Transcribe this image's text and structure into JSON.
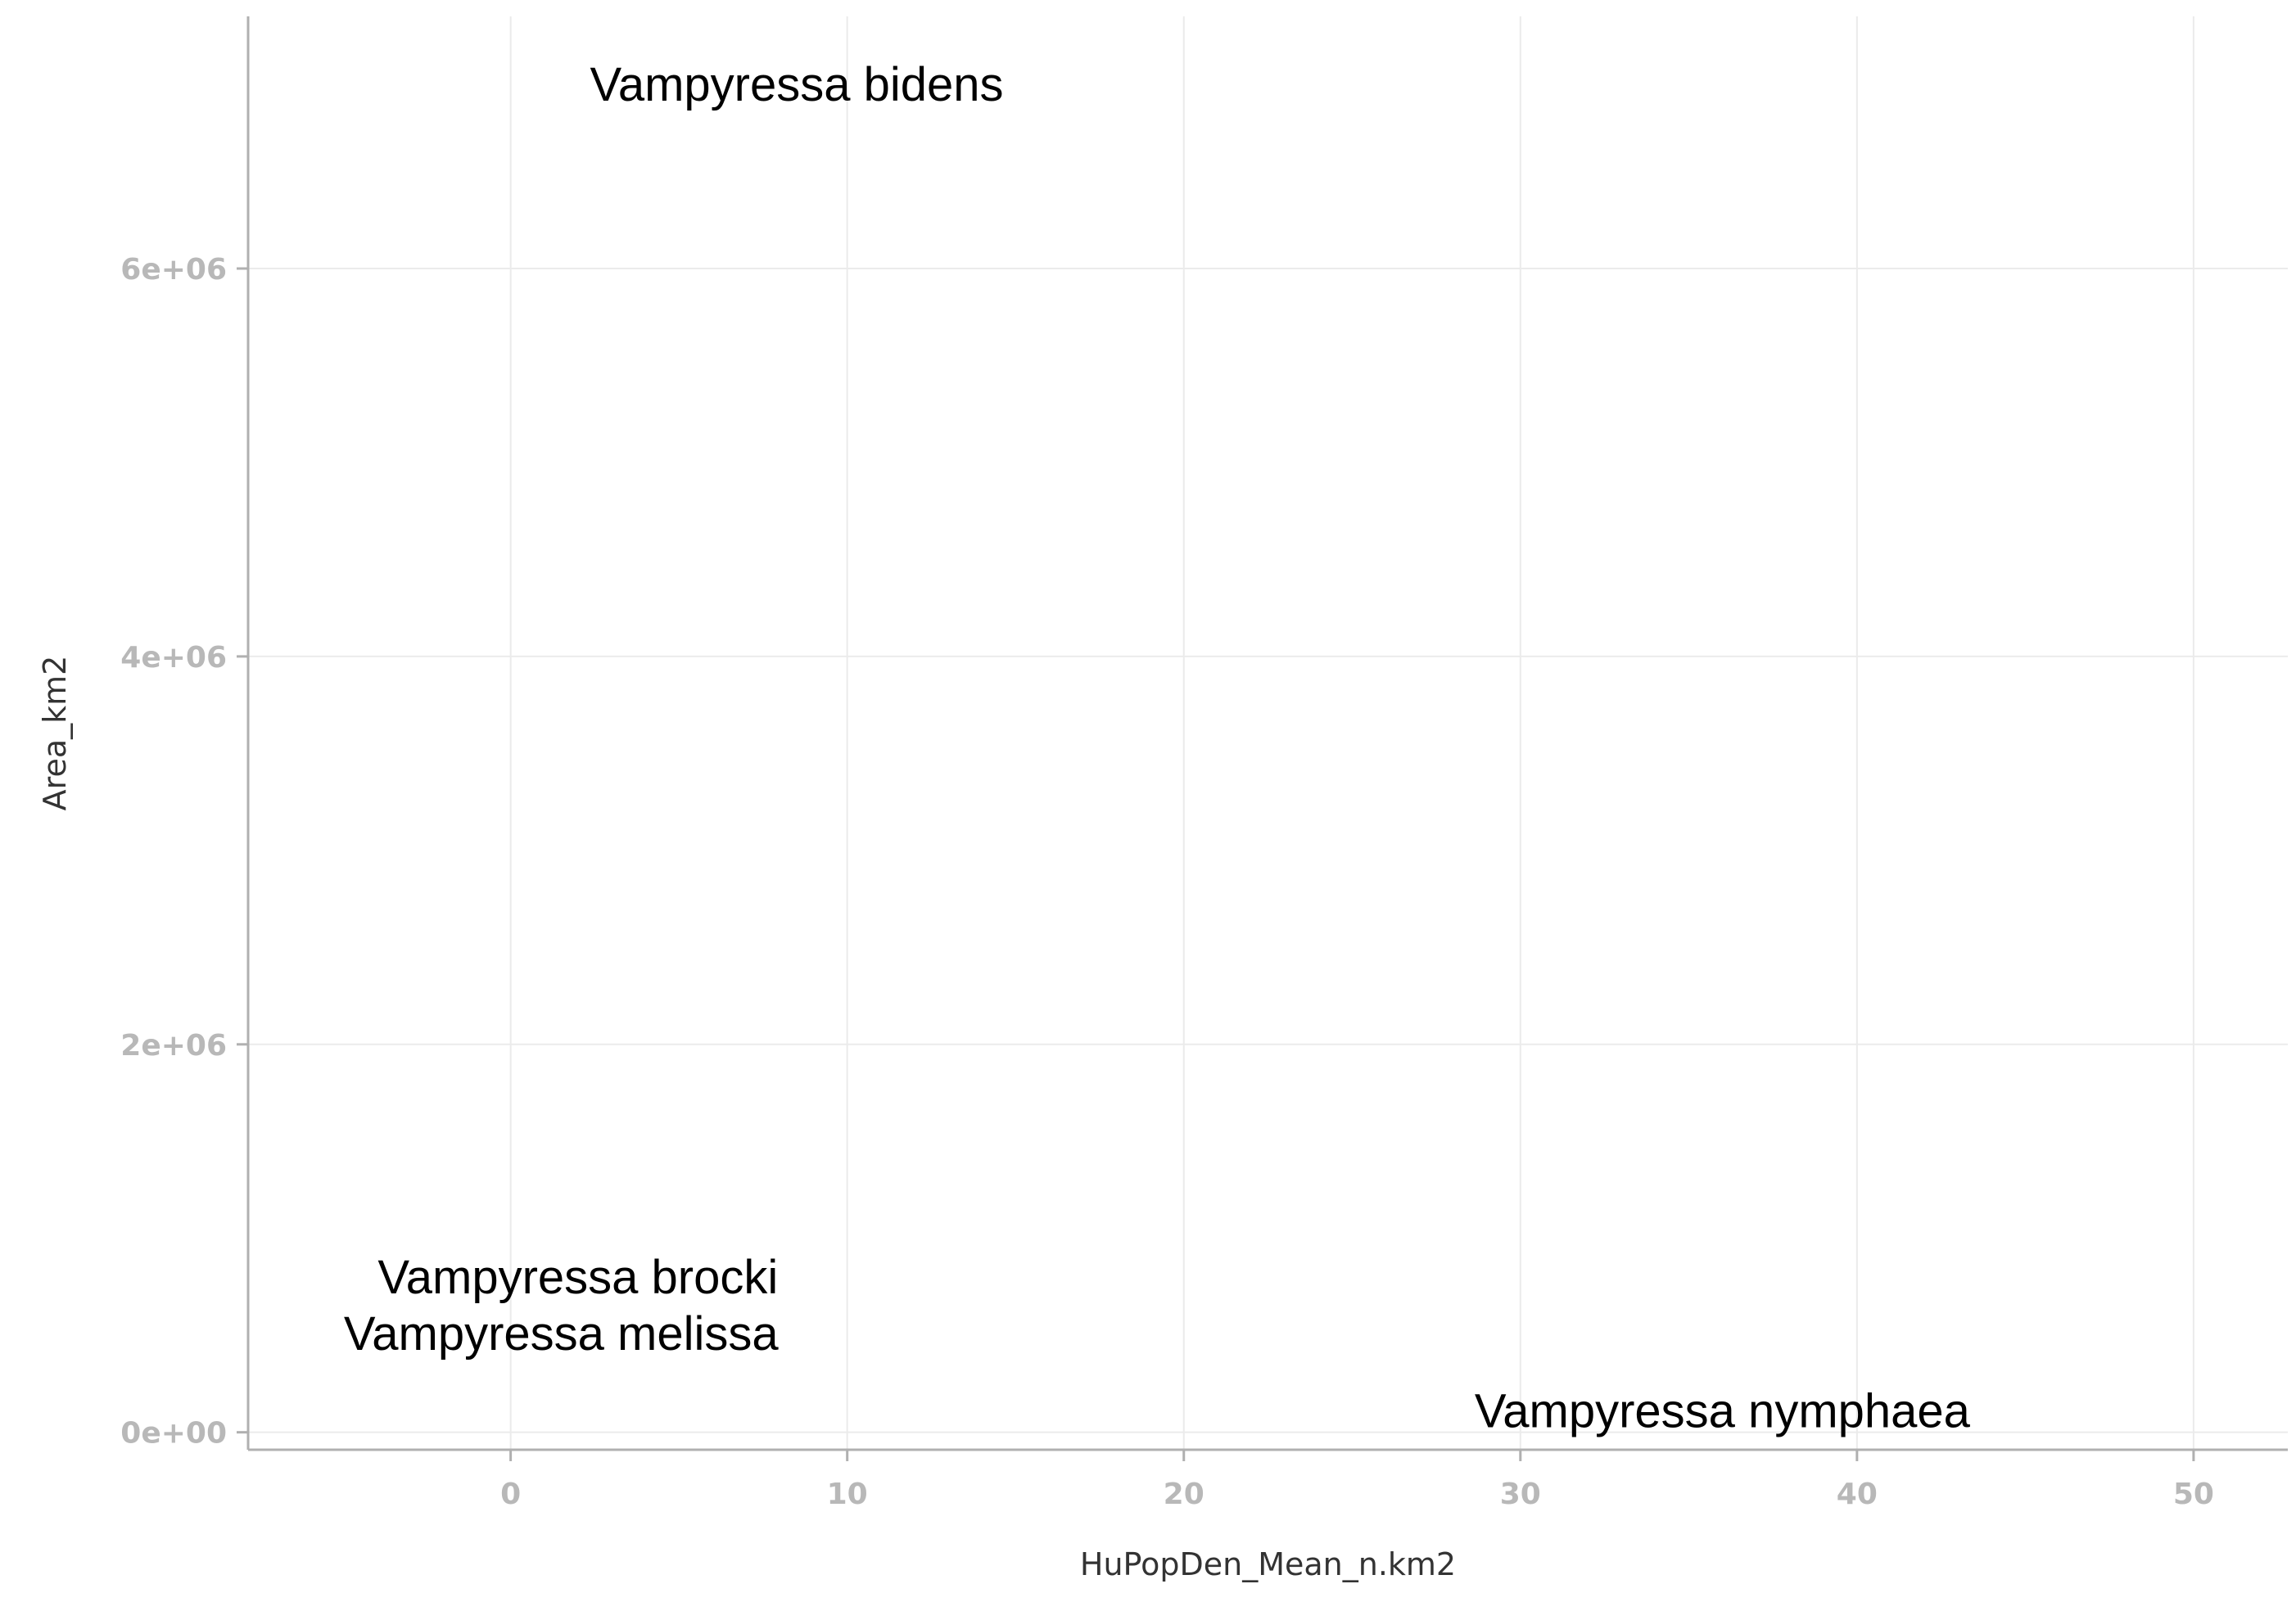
{
  "chart_data": {
    "type": "scatter",
    "xlabel": "HuPopDen_Mean_n.km2",
    "ylabel": "Area_km2",
    "xlim": [
      -7.8,
      52.8
    ],
    "ylim": [
      -90000,
      7300000
    ],
    "x_ticks": [
      0,
      10,
      20,
      30,
      40,
      50
    ],
    "x_tick_labels": [
      "0",
      "10",
      "20",
      "30",
      "40",
      "50"
    ],
    "y_ticks": [
      0,
      2000000,
      4000000,
      6000000
    ],
    "y_tick_labels": [
      "0e+00",
      "2e+06",
      "4e+06",
      "6e+06"
    ],
    "grid": true,
    "points": [
      {
        "label": "Vampyressa bidens",
        "x": 8.5,
        "y": 6950000
      },
      {
        "label": "Vampyressa brocki",
        "x": 2.0,
        "y": 800000
      },
      {
        "label": "Vampyressa melissa",
        "x": 1.5,
        "y": 510000
      },
      {
        "label": "Vampyressa nymphaea",
        "x": 36.0,
        "y": 110000
      }
    ]
  }
}
